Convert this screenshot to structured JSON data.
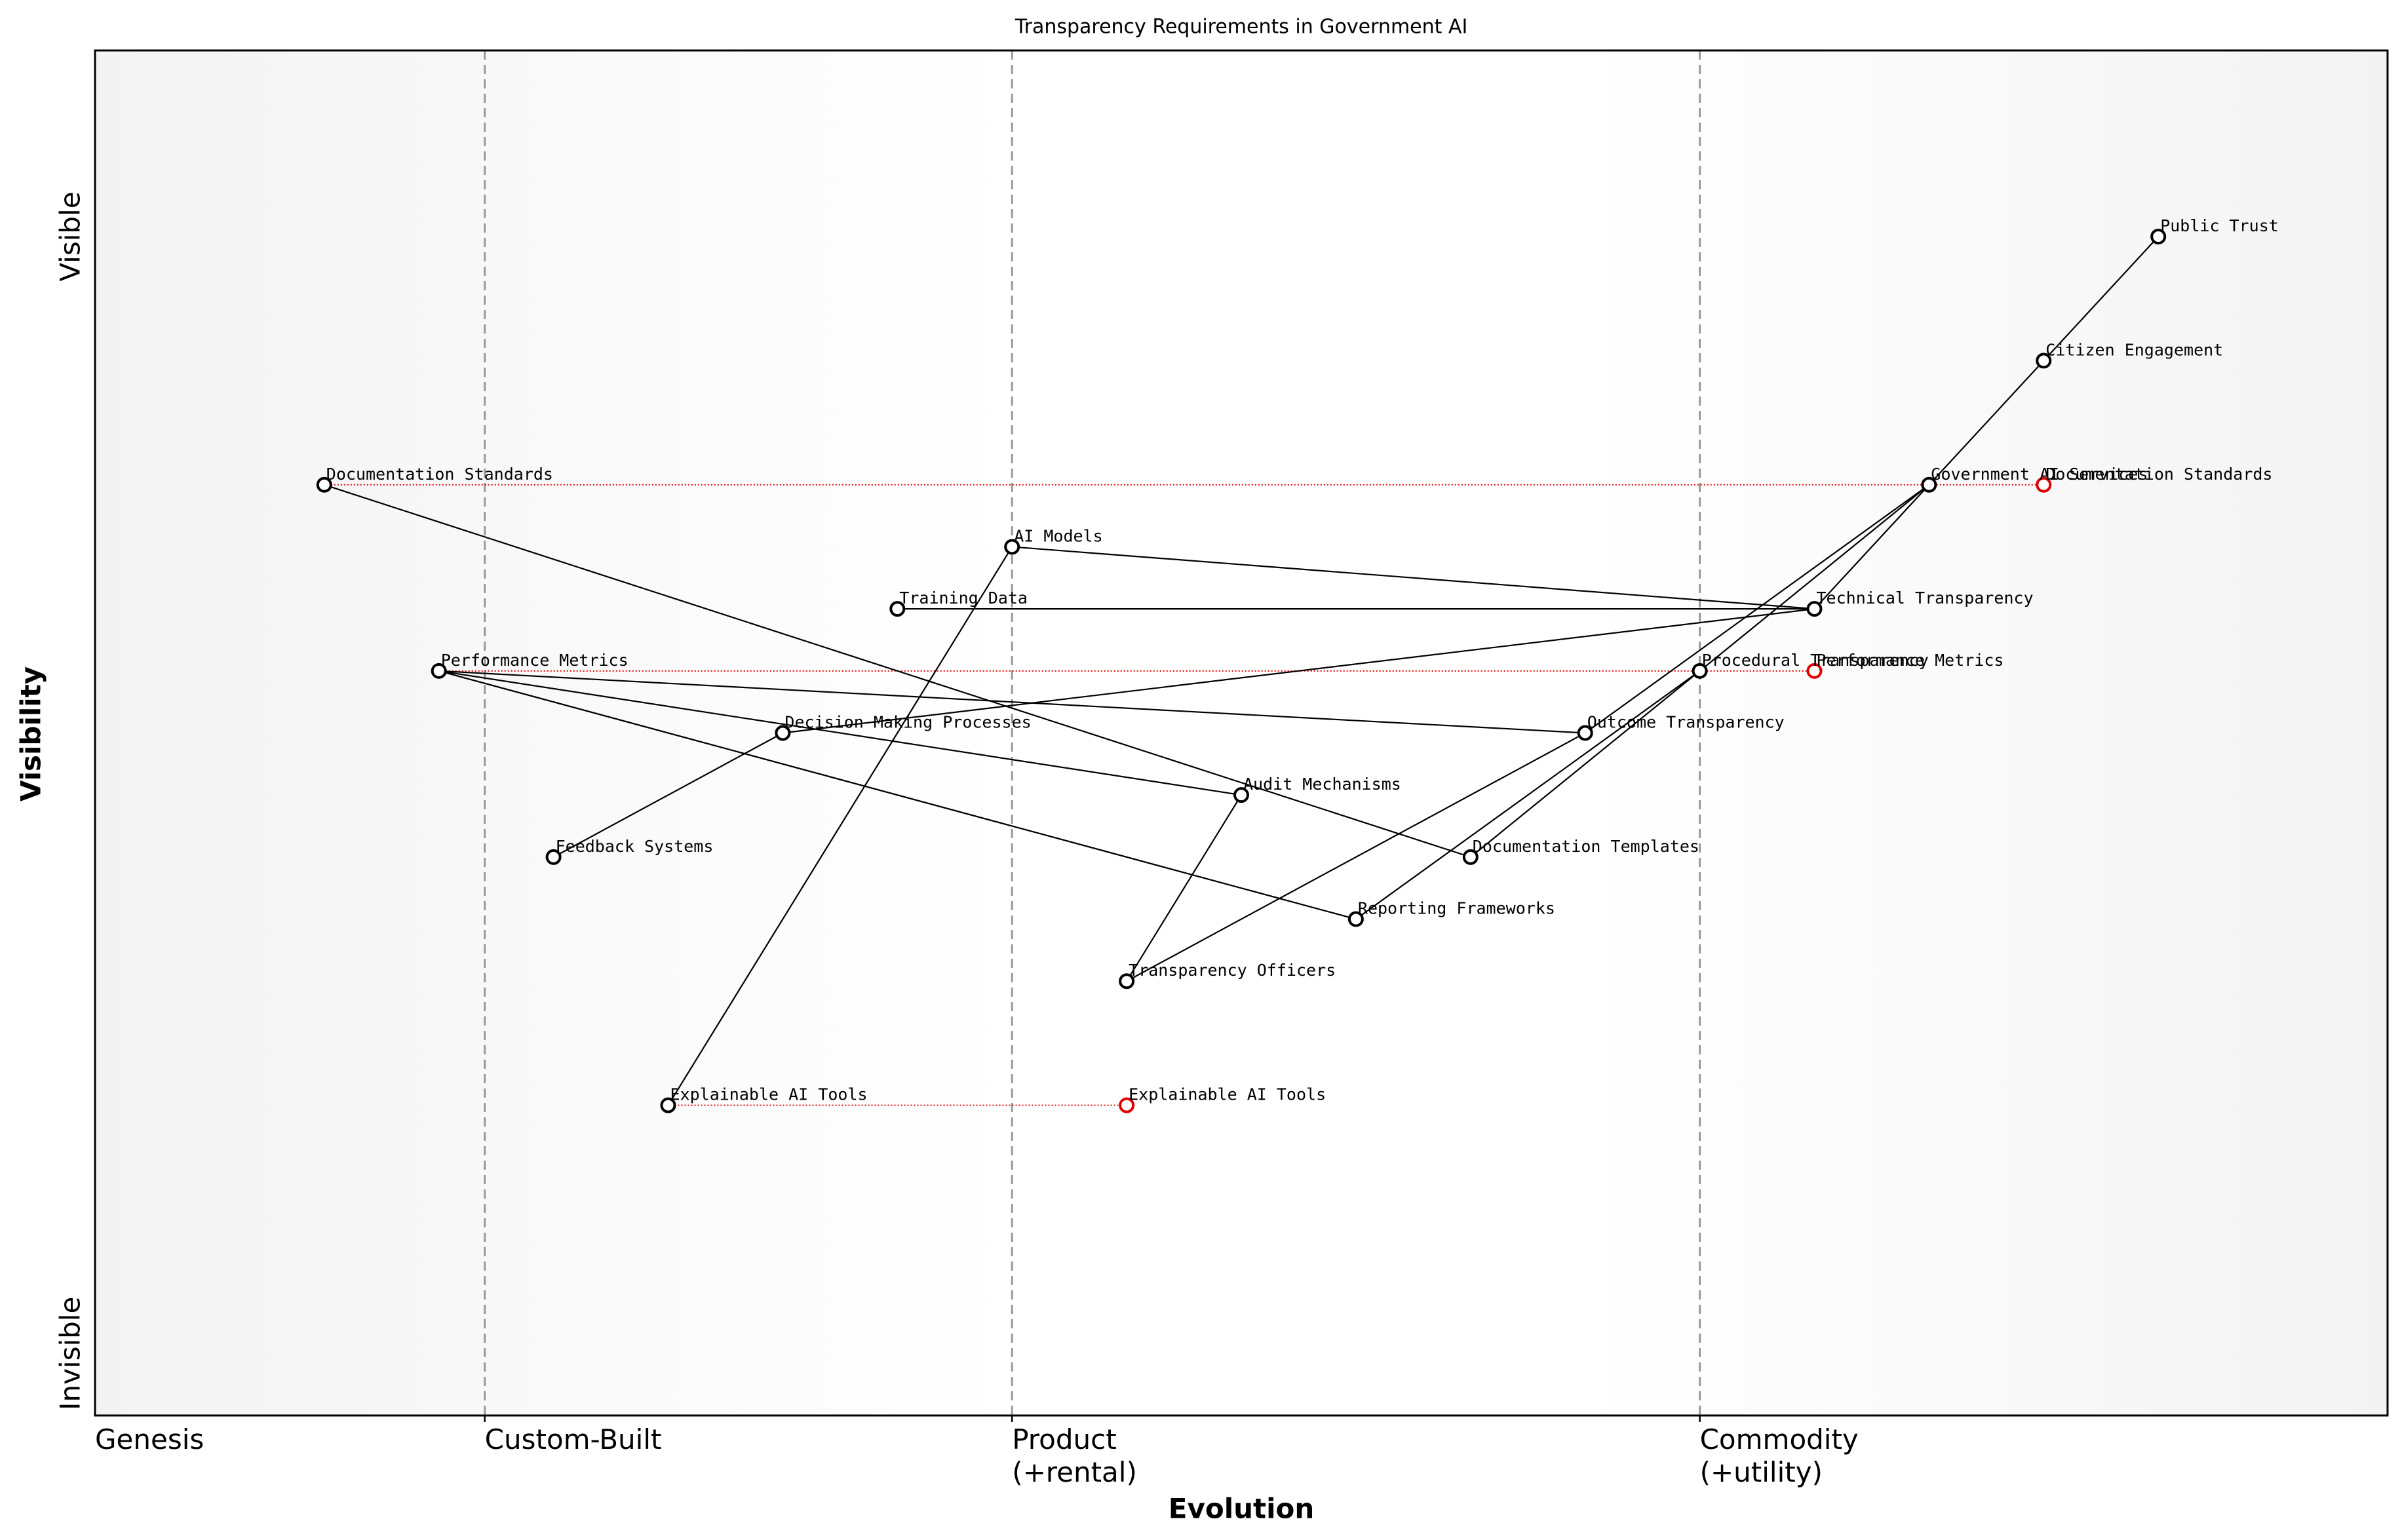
{
  "chart_data": {
    "type": "wardley",
    "title": "Transparency Requirements in Government AI",
    "xlabel": "Evolution",
    "ylabel": "Visibility",
    "xlim": [
      0,
      1
    ],
    "ylim": [
      0,
      1.1
    ],
    "xticks": [
      {
        "value": 0,
        "label": "Genesis"
      },
      {
        "value": 0.17,
        "label": "Custom-Built"
      },
      {
        "value": 0.4,
        "label": "Product\n(+rental)"
      },
      {
        "value": 0.7,
        "label": "Commodity\n(+utility)"
      }
    ],
    "yticks": [
      {
        "value": 0.95,
        "label": "Visible"
      },
      {
        "value": 0.05,
        "label": "Invisible"
      }
    ],
    "nodes": [
      {
        "name": "Public Trust",
        "x": 0.9,
        "y": 0.95
      },
      {
        "name": "Citizen Engagement",
        "x": 0.85,
        "y": 0.85
      },
      {
        "name": "Government AI Services",
        "x": 0.8,
        "y": 0.75
      },
      {
        "name": "Documentation Standards",
        "x": 0.1,
        "y": 0.75
      },
      {
        "name": "AI Models",
        "x": 0.4,
        "y": 0.7
      },
      {
        "name": "Training Data",
        "x": 0.35,
        "y": 0.65
      },
      {
        "name": "Technical Transparency",
        "x": 0.75,
        "y": 0.65
      },
      {
        "name": "Performance Metrics",
        "x": 0.15,
        "y": 0.6
      },
      {
        "name": "Procedural Transparency",
        "x": 0.7,
        "y": 0.6
      },
      {
        "name": "Decision Making Processes",
        "x": 0.3,
        "y": 0.55
      },
      {
        "name": "Outcome Transparency",
        "x": 0.65,
        "y": 0.55
      },
      {
        "name": "Audit Mechanisms",
        "x": 0.5,
        "y": 0.5
      },
      {
        "name": "Feedback Systems",
        "x": 0.2,
        "y": 0.45
      },
      {
        "name": "Documentation Templates",
        "x": 0.6,
        "y": 0.45
      },
      {
        "name": "Reporting Frameworks",
        "x": 0.55,
        "y": 0.4
      },
      {
        "name": "Transparency Officers",
        "x": 0.45,
        "y": 0.35
      },
      {
        "name": "Explainable AI Tools",
        "x": 0.25,
        "y": 0.25
      }
    ],
    "links": [
      [
        0,
        1
      ],
      [
        1,
        2
      ],
      [
        2,
        6
      ],
      [
        2,
        8
      ],
      [
        2,
        10
      ],
      [
        6,
        4
      ],
      [
        6,
        5
      ],
      [
        6,
        9
      ],
      [
        8,
        13
      ],
      [
        8,
        14
      ],
      [
        10,
        15
      ],
      [
        10,
        7
      ],
      [
        7,
        11
      ],
      [
        7,
        14
      ],
      [
        11,
        15
      ],
      [
        9,
        12
      ],
      [
        4,
        16
      ],
      [
        3,
        13
      ]
    ],
    "evolutions": [
      {
        "name": "Documentation Standards",
        "from": 0.1,
        "to": 0.85,
        "y": 0.75
      },
      {
        "name": "Performance Metrics",
        "from": 0.15,
        "to": 0.75,
        "y": 0.6
      },
      {
        "name": "Explainable AI Tools",
        "from": 0.25,
        "to": 0.45,
        "y": 0.25
      }
    ],
    "node_color": "#000000",
    "evolve_color": "#e00000"
  }
}
